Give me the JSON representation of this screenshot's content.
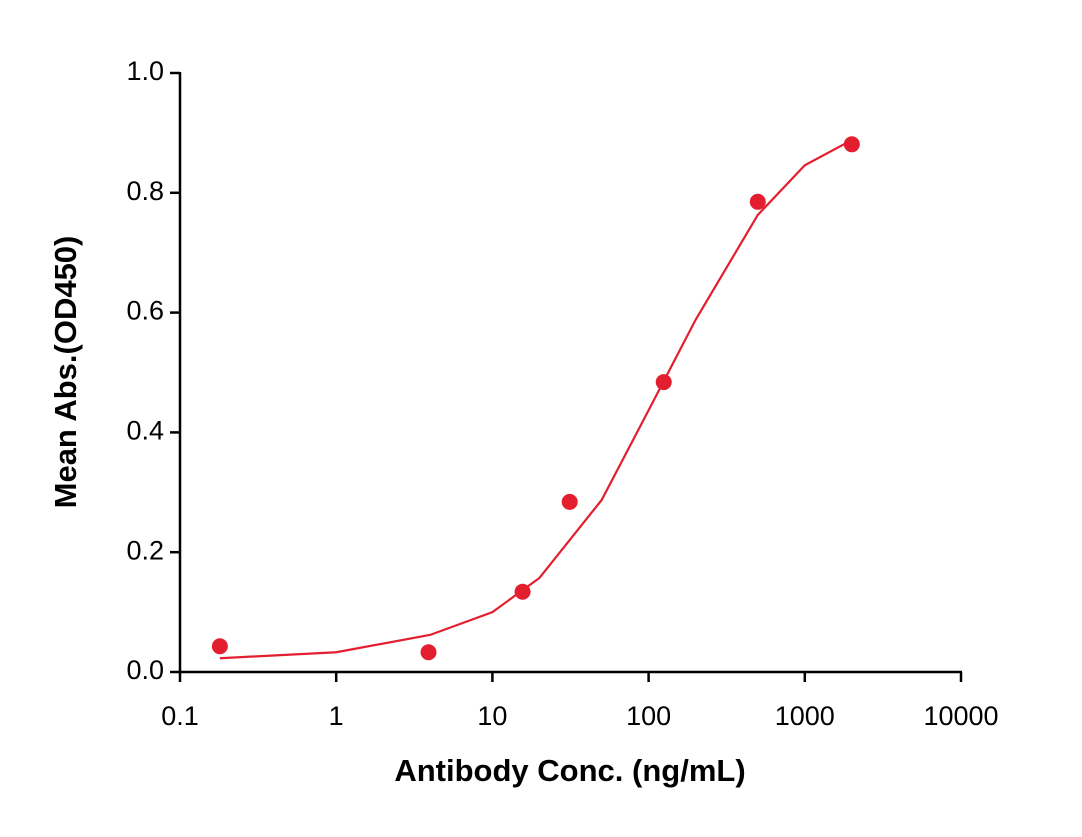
{
  "chart_data": {
    "type": "scatter",
    "xlabel": "Antibody Conc. (ng/mL)",
    "ylabel": "Mean Abs.(OD450)",
    "xscale": "log",
    "xlim": [
      0.1,
      10000
    ],
    "xticks": [
      0.1,
      1,
      10,
      100,
      1000,
      10000
    ],
    "ylim": [
      0,
      1
    ],
    "yticks": [
      {
        "value": 0,
        "label": "0.0"
      },
      0.2,
      0.4,
      0.6,
      0.8,
      {
        "value": 1,
        "label": "1.0"
      }
    ],
    "grid": false,
    "series": [
      {
        "type": "scatter",
        "color": "#e31e2e",
        "x": [
          0.18,
          3.9,
          15.6,
          31.25,
          125,
          500,
          2000
        ],
        "values": [
          0.043,
          0.033,
          0.134,
          0.284,
          0.484,
          0.785,
          0.881
        ]
      },
      {
        "type": "line",
        "color": "#e31e2e",
        "x": [
          0.18,
          1,
          4,
          10,
          20,
          50,
          100,
          200,
          500,
          1000,
          2000
        ],
        "values": [
          0.023,
          0.033,
          0.062,
          0.1,
          0.157,
          0.287,
          0.437,
          0.588,
          0.763,
          0.846,
          0.888
        ]
      }
    ]
  }
}
